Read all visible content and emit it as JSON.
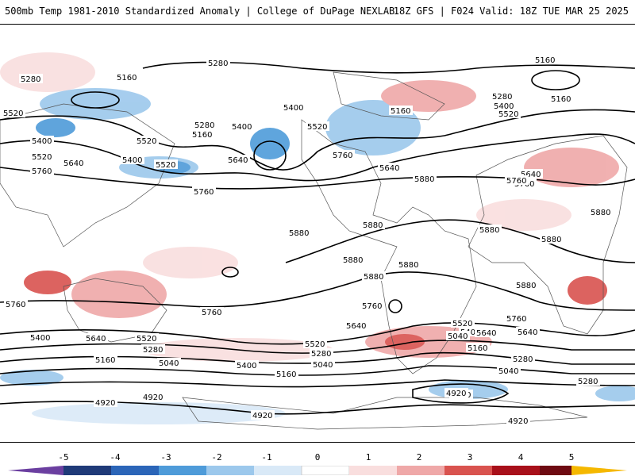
{
  "header": {
    "title_left": "500mb Temp 1981-2010 Standardized Anomaly | College of DuPage NEXLAB",
    "title_right": "18Z GFS | F024 Valid: 18Z TUE MAR 25 2025"
  },
  "colorbar": {
    "ticks": [
      "-5",
      "-4",
      "-3",
      "-2",
      "-1",
      "0",
      "1",
      "2",
      "3",
      "4",
      "5"
    ],
    "colors": [
      "#6b3fa0",
      "#1f3a78",
      "#2b65b8",
      "#4e9bd9",
      "#9cc8ec",
      "#d9e9f7",
      "#ffffff",
      "#f9dede",
      "#efa8a8",
      "#d9534f",
      "#a8101a",
      "#6e0a12",
      "#f5b800"
    ]
  },
  "contours": {
    "labels": [
      "5280",
      "5160",
      "5520",
      "5160",
      "5280",
      "5400",
      "5520",
      "5760",
      "5640",
      "5400",
      "5520",
      "5640",
      "5760",
      "5280",
      "5520",
      "5400",
      "5160",
      "5760",
      "5640",
      "5160",
      "5280",
      "5400",
      "5520",
      "5640",
      "5760",
      "5880",
      "5880",
      "5880",
      "5880",
      "5880",
      "5880",
      "5880",
      "5880",
      "5760",
      "5640",
      "5520",
      "5400",
      "5280",
      "5160",
      "5040",
      "4920",
      "5760",
      "5760",
      "5640",
      "5520",
      "5400",
      "5280",
      "5160",
      "5040",
      "4920",
      "4920",
      "5760",
      "5640",
      "5520",
      "5400",
      "5280",
      "5160",
      "5040",
      "4920",
      "5400",
      "5280",
      "5040",
      "5160",
      "5400",
      "5520",
      "5640",
      "5760",
      "5880",
      "5880",
      "4920"
    ]
  }
}
